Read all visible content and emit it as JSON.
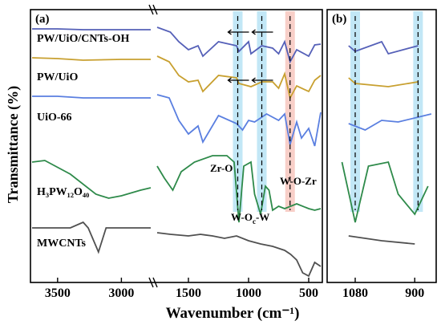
{
  "chart_data": {
    "type": "line",
    "ylabel": "Transmittance (%)",
    "xlabel": "Wavenumber (cm⁻¹)",
    "panel_a": {
      "label": "(a)",
      "x_ticks_left": [
        "3500",
        "3000"
      ],
      "x_ticks_right": [
        "1500",
        "1000",
        "500"
      ],
      "xlim_left": [
        3700,
        2770
      ],
      "xlim_right": [
        1760,
        400
      ],
      "annotations": [
        {
          "text": "Zr-O",
          "x": 1100
        },
        {
          "text": "W-O-Zr",
          "x": 650
        },
        {
          "text": "W-O",
          "sub": "c",
          "tail": "-W",
          "x": 890
        }
      ],
      "highlight_bands": [
        {
          "x": 1090,
          "color": "#8fd3ef"
        },
        {
          "x": 890,
          "color": "#8fd3ef"
        },
        {
          "x": 655,
          "color": "#f3a79a"
        }
      ]
    },
    "panel_b": {
      "label": "(b)",
      "x_ticks": [
        "1080",
        "900"
      ],
      "xlim": [
        1160,
        840
      ],
      "highlight_bands": [
        {
          "x": 1080,
          "color": "#8fd3ef"
        },
        {
          "x": 890,
          "color": "#8fd3ef"
        }
      ]
    },
    "series": [
      {
        "name": "PW/UiO/CNTs-OH",
        "color": "#5560b8",
        "points": [
          [
            3700,
            14
          ],
          [
            3500,
            14
          ],
          [
            3300,
            15
          ],
          [
            3000,
            15
          ],
          [
            2770,
            15
          ],
          [
            1760,
            12
          ],
          [
            1650,
            18
          ],
          [
            1580,
            30
          ],
          [
            1500,
            40
          ],
          [
            1420,
            35
          ],
          [
            1380,
            48
          ],
          [
            1250,
            30
          ],
          [
            1100,
            35
          ],
          [
            1080,
            42
          ],
          [
            1000,
            30
          ],
          [
            980,
            45
          ],
          [
            890,
            35
          ],
          [
            800,
            38
          ],
          [
            750,
            45
          ],
          [
            700,
            30
          ],
          [
            655,
            55
          ],
          [
            600,
            40
          ],
          [
            500,
            48
          ],
          [
            450,
            34
          ],
          [
            400,
            33
          ]
        ]
      },
      {
        "name": "PW/UiO",
        "color": "#c8a030",
        "points": [
          [
            3700,
            50
          ],
          [
            3500,
            51
          ],
          [
            3300,
            53
          ],
          [
            3000,
            52
          ],
          [
            2770,
            52
          ],
          [
            1760,
            48
          ],
          [
            1660,
            55
          ],
          [
            1580,
            72
          ],
          [
            1500,
            80
          ],
          [
            1420,
            78
          ],
          [
            1380,
            92
          ],
          [
            1250,
            72
          ],
          [
            1100,
            75
          ],
          [
            1080,
            82
          ],
          [
            980,
            86
          ],
          [
            890,
            80
          ],
          [
            800,
            80
          ],
          [
            750,
            88
          ],
          [
            700,
            70
          ],
          [
            655,
            100
          ],
          [
            600,
            85
          ],
          [
            500,
            92
          ],
          [
            450,
            78
          ],
          [
            400,
            72
          ]
        ]
      },
      {
        "name": "UiO-66",
        "color": "#5a7fe0",
        "points": [
          [
            3700,
            98
          ],
          [
            3500,
            98
          ],
          [
            3300,
            100
          ],
          [
            3000,
            100
          ],
          [
            2770,
            100
          ],
          [
            1760,
            96
          ],
          [
            1660,
            100
          ],
          [
            1580,
            128
          ],
          [
            1500,
            145
          ],
          [
            1420,
            135
          ],
          [
            1380,
            155
          ],
          [
            1250,
            122
          ],
          [
            1100,
            132
          ],
          [
            1050,
            140
          ],
          [
            1000,
            128
          ],
          [
            950,
            130
          ],
          [
            850,
            120
          ],
          [
            750,
            128
          ],
          [
            700,
            120
          ],
          [
            655,
            158
          ],
          [
            600,
            130
          ],
          [
            560,
            150
          ],
          [
            500,
            138
          ],
          [
            450,
            160
          ],
          [
            400,
            118
          ]
        ]
      },
      {
        "name": "H₃PW₁₂O₄₀",
        "color": "#2e8a4a",
        "points": [
          [
            3700,
            180
          ],
          [
            3600,
            178
          ],
          [
            3400,
            195
          ],
          [
            3200,
            220
          ],
          [
            3100,
            225
          ],
          [
            3000,
            222
          ],
          [
            2850,
            215
          ],
          [
            2770,
            212
          ],
          [
            1760,
            185
          ],
          [
            1700,
            200
          ],
          [
            1630,
            215
          ],
          [
            1560,
            192
          ],
          [
            1450,
            180
          ],
          [
            1300,
            172
          ],
          [
            1180,
            172
          ],
          [
            1120,
            180
          ],
          [
            1080,
            255
          ],
          [
            1040,
            185
          ],
          [
            980,
            180
          ],
          [
            950,
            220
          ],
          [
            900,
            245
          ],
          [
            860,
            210
          ],
          [
            830,
            215
          ],
          [
            800,
            240
          ],
          [
            750,
            235
          ],
          [
            700,
            238
          ],
          [
            600,
            232
          ],
          [
            500,
            238
          ],
          [
            450,
            240
          ],
          [
            400,
            238
          ]
        ]
      },
      {
        "name": "MWCNTs",
        "color": "#505050",
        "points": [
          [
            3700,
            262
          ],
          [
            3500,
            262
          ],
          [
            3400,
            262
          ],
          [
            3300,
            255
          ],
          [
            3260,
            262
          ],
          [
            3180,
            292
          ],
          [
            3120,
            262
          ],
          [
            3000,
            262
          ],
          [
            2770,
            262
          ],
          [
            1760,
            268
          ],
          [
            1650,
            270
          ],
          [
            1500,
            272
          ],
          [
            1400,
            270
          ],
          [
            1300,
            272
          ],
          [
            1200,
            275
          ],
          [
            1100,
            272
          ],
          [
            1000,
            278
          ],
          [
            900,
            282
          ],
          [
            800,
            285
          ],
          [
            700,
            290
          ],
          [
            650,
            295
          ],
          [
            600,
            302
          ],
          [
            550,
            318
          ],
          [
            500,
            322
          ],
          [
            450,
            305
          ],
          [
            400,
            310
          ]
        ]
      }
    ]
  }
}
